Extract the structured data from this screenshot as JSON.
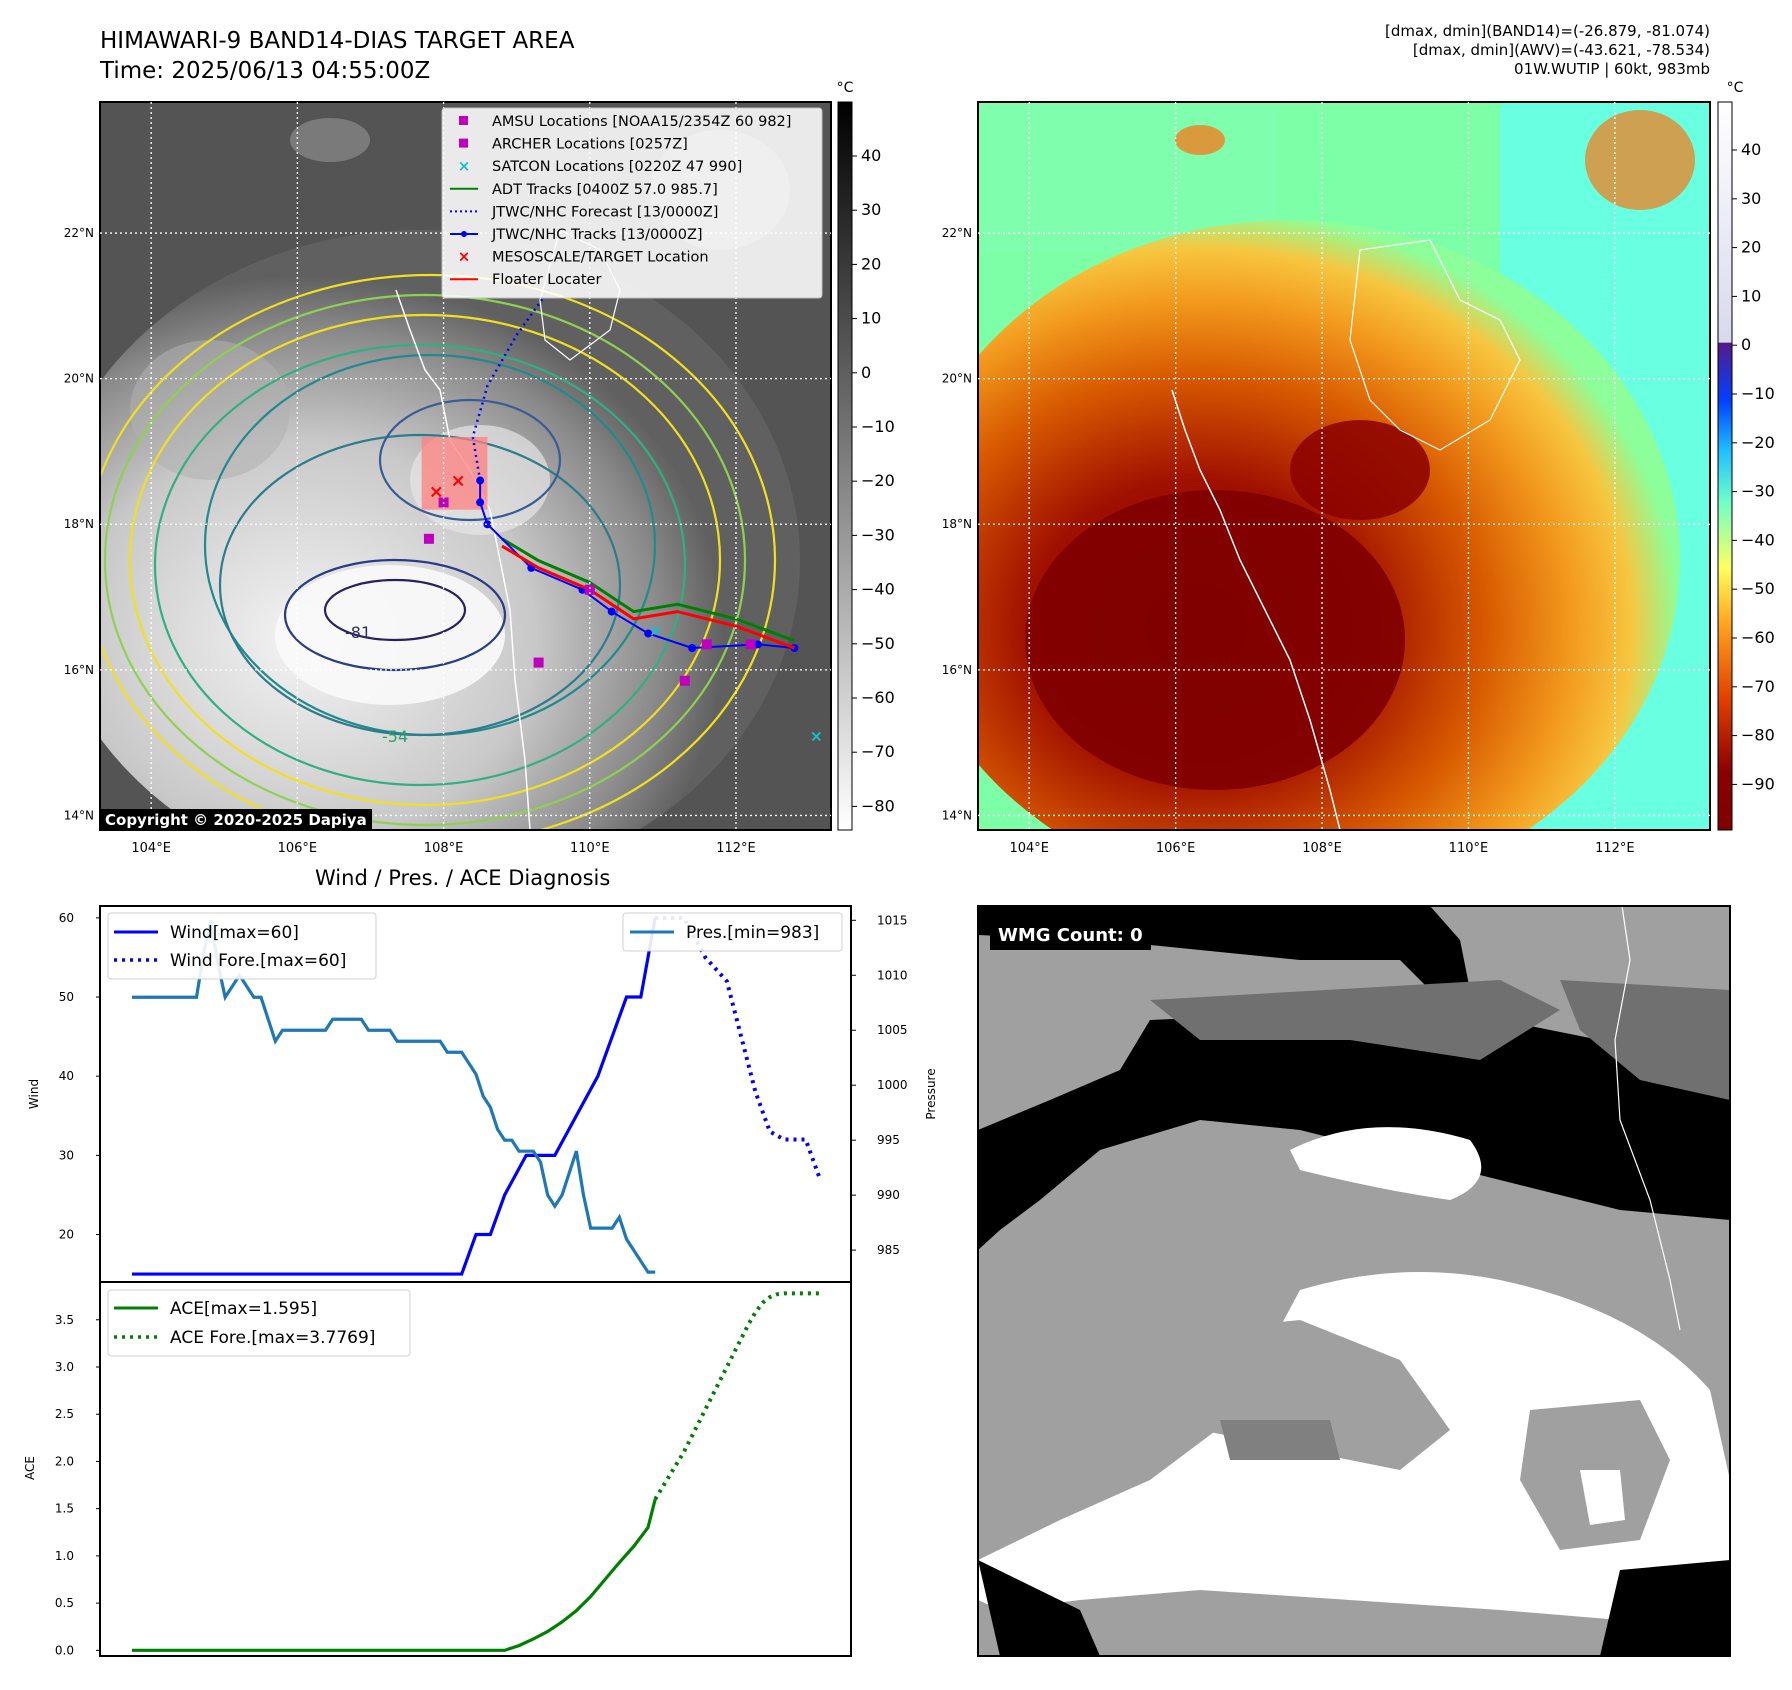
{
  "header": {
    "title": "HIMAWARI-9 BAND14-DIAS TARGET AREA",
    "time": "Time: 2025/06/13 04:55:00Z",
    "stats": [
      "[dmax, dmin](BAND14)=(-26.879, -81.074)",
      "[dmax, dmin](AWV)=(-43.621, -78.534)",
      "01W.WUTIP | 60kt, 983mb"
    ],
    "copyright": "Copyright © 2020-2025 Dapiya"
  },
  "colors": {
    "wind": "#0000ff",
    "pressure": "#1f77b4",
    "ace": "#008000",
    "floater": "#ff0000",
    "adt": "#008000",
    "amsu": "#bf00bf",
    "satcon": "#17becf"
  },
  "maps": {
    "lon_ticks": [
      "104°E",
      "106°E",
      "108°E",
      "110°E",
      "112°E"
    ],
    "lat_ticks": [
      "22°N",
      "20°N",
      "18°N",
      "16°N",
      "14°N"
    ],
    "unit": "°C",
    "left_colorbar_ticks": [
      "40",
      "30",
      "20",
      "10",
      "0",
      "−10",
      "−20",
      "−30",
      "−40",
      "−50",
      "−60",
      "−70",
      "−80"
    ],
    "right_colorbar_ticks": [
      "40",
      "30",
      "20",
      "10",
      "0",
      "−10",
      "−20",
      "−30",
      "−40",
      "−50",
      "−60",
      "−70",
      "−80",
      "−90"
    ],
    "contour_labels": [
      "-81",
      "-54"
    ],
    "legend": [
      {
        "label": "AMSU Locations [NOAA15/2354Z 60 982]",
        "marker": "square",
        "color": "#bf00bf"
      },
      {
        "label": "ARCHER Locations [0257Z]",
        "marker": "square",
        "color": "#bf00bf"
      },
      {
        "label": "SATCON Locations [0220Z 47 990]",
        "marker": "x",
        "color": "#17becf"
      },
      {
        "label": "ADT Tracks [0400Z 57.0 985.7]",
        "marker": "line",
        "color": "#008000"
      },
      {
        "label": "JTWC/NHC Forecast [13/0000Z]",
        "marker": "dotted",
        "color": "#0000ff"
      },
      {
        "label": "JTWC/NHC Tracks [13/0000Z]",
        "marker": "line-dot",
        "color": "#0000ff"
      },
      {
        "label": "MESOSCALE/TARGET Location",
        "marker": "x",
        "color": "#ff0000"
      },
      {
        "label": "Floater Locater",
        "marker": "line",
        "color": "#ff0000"
      }
    ],
    "track_points": {
      "jtwc": [
        [
          112.8,
          16.3
        ],
        [
          112.3,
          16.35
        ],
        [
          111.4,
          16.3
        ],
        [
          110.8,
          16.5
        ],
        [
          110.3,
          16.8
        ],
        [
          109.9,
          17.1
        ],
        [
          109.2,
          17.4
        ],
        [
          108.6,
          18.0
        ],
        [
          108.5,
          18.3
        ],
        [
          108.5,
          18.6
        ]
      ],
      "forecast": [
        [
          108.5,
          18.6
        ],
        [
          108.4,
          19.2
        ],
        [
          108.6,
          19.9
        ],
        [
          109.0,
          20.6
        ],
        [
          109.5,
          21.3
        ]
      ],
      "adt": [
        [
          112.8,
          16.4
        ],
        [
          112.0,
          16.7
        ],
        [
          111.2,
          16.9
        ],
        [
          110.6,
          16.8
        ],
        [
          110.0,
          17.2
        ],
        [
          109.3,
          17.5
        ],
        [
          108.8,
          17.8
        ]
      ],
      "amsu": [
        [
          108.0,
          18.3
        ],
        [
          107.8,
          17.8
        ],
        [
          109.3,
          16.1
        ],
        [
          110.0,
          17.1
        ],
        [
          111.3,
          15.85
        ],
        [
          111.6,
          16.35
        ],
        [
          112.2,
          16.35
        ]
      ],
      "satcon": [
        [
          110.9,
          16.55
        ],
        [
          113.1,
          15.1
        ]
      ],
      "target": [
        [
          107.9,
          18.45
        ],
        [
          108.2,
          18.6
        ]
      ],
      "target_box": [
        107.7,
        18.2,
        108.6,
        19.2
      ]
    }
  },
  "chart_data": [
    {
      "type": "line",
      "title": "Wind / Pres. / ACE Diagnosis",
      "ylabel": "Wind",
      "y2label": "Pressure",
      "ylim": [
        14,
        61.5
      ],
      "y2lim": [
        982.1,
        1016.3
      ],
      "yticks": [
        "20",
        "30",
        "40",
        "50",
        "60"
      ],
      "y2ticks": [
        "985",
        "990",
        "995",
        "1000",
        "1005",
        "1010",
        "1015"
      ],
      "legend_left": [
        "Wind[max=60]",
        "Wind Fore.[max=60]"
      ],
      "legend_right": [
        "Pres.[min=983]"
      ],
      "series": [
        {
          "name": "Wind[max=60]",
          "axis": "left",
          "style": "solid",
          "x": [
            0,
            46,
            48,
            50,
            52,
            55,
            59,
            62,
            65,
            67,
            69,
            71,
            73
          ],
          "y": [
            15,
            15,
            20,
            20,
            25,
            30,
            30,
            35,
            40,
            45,
            50,
            50,
            60
          ]
        },
        {
          "name": "Wind Fore.[max=60]",
          "axis": "left",
          "style": "dotted",
          "x": [
            73,
            77,
            80,
            83,
            85,
            87,
            89,
            91,
            94,
            96
          ],
          "y": [
            60,
            60,
            55,
            52,
            45,
            38,
            33,
            32,
            32,
            27
          ]
        },
        {
          "name": "Pres.[min=983]",
          "axis": "right",
          "style": "solid",
          "x": [
            0,
            9,
            10,
            11,
            12,
            13,
            14,
            15,
            16,
            17,
            18,
            19,
            20,
            21,
            22,
            23,
            24,
            25,
            26,
            27,
            28,
            29,
            30,
            31,
            32,
            33,
            34,
            35,
            36,
            37,
            38,
            39,
            40,
            41,
            42,
            43,
            44,
            45,
            46,
            47,
            48,
            49,
            50,
            51,
            52,
            53,
            54,
            55,
            56,
            57,
            58,
            59,
            60,
            61,
            62,
            63,
            64,
            65,
            66,
            67,
            68,
            69,
            70,
            71,
            72,
            73
          ],
          "y": [
            1008,
            1008,
            1012,
            1015,
            1011,
            1008,
            1009,
            1010,
            1009,
            1008,
            1008,
            1006,
            1004,
            1005,
            1005,
            1005,
            1005,
            1005,
            1005,
            1005,
            1006,
            1006,
            1006,
            1006,
            1006,
            1005,
            1005,
            1005,
            1005,
            1004,
            1004,
            1004,
            1004,
            1004,
            1004,
            1004,
            1003,
            1003,
            1003,
            1002,
            1001,
            999,
            998,
            996,
            995,
            995,
            994,
            994,
            994,
            993,
            990,
            989,
            990,
            992,
            994,
            990,
            987,
            987,
            987,
            987,
            988,
            986,
            985,
            984,
            983,
            983
          ]
        }
      ]
    },
    {
      "type": "line",
      "ylabel": "ACE",
      "ylim": [
        -0.06,
        3.9
      ],
      "yticks": [
        "0.0",
        "0.5",
        "1.0",
        "1.5",
        "2.0",
        "2.5",
        "3.0",
        "3.5"
      ],
      "legend": [
        "ACE[max=1.595]",
        "ACE Fore.[max=3.7769]"
      ],
      "series": [
        {
          "name": "ACE[max=1.595]",
          "style": "solid",
          "x": [
            0,
            52,
            54,
            56,
            58,
            60,
            62,
            64,
            66,
            68,
            70,
            72,
            73
          ],
          "y": [
            0,
            0,
            0.05,
            0.12,
            0.2,
            0.3,
            0.42,
            0.57,
            0.75,
            0.93,
            1.1,
            1.3,
            1.6
          ]
        },
        {
          "name": "ACE Fore.[max=3.7769]",
          "style": "dotted",
          "x": [
            73,
            75,
            77,
            79,
            81,
            83,
            84,
            85,
            86,
            87,
            88,
            89,
            90,
            91,
            92,
            93,
            94,
            95,
            96
          ],
          "y": [
            1.6,
            1.85,
            2.1,
            2.4,
            2.7,
            3.0,
            3.15,
            3.3,
            3.45,
            3.58,
            3.68,
            3.74,
            3.77,
            3.78,
            3.78,
            3.78,
            3.78,
            3.78,
            3.78
          ]
        }
      ]
    }
  ],
  "wmg": {
    "label": "WMG Count: 0"
  }
}
